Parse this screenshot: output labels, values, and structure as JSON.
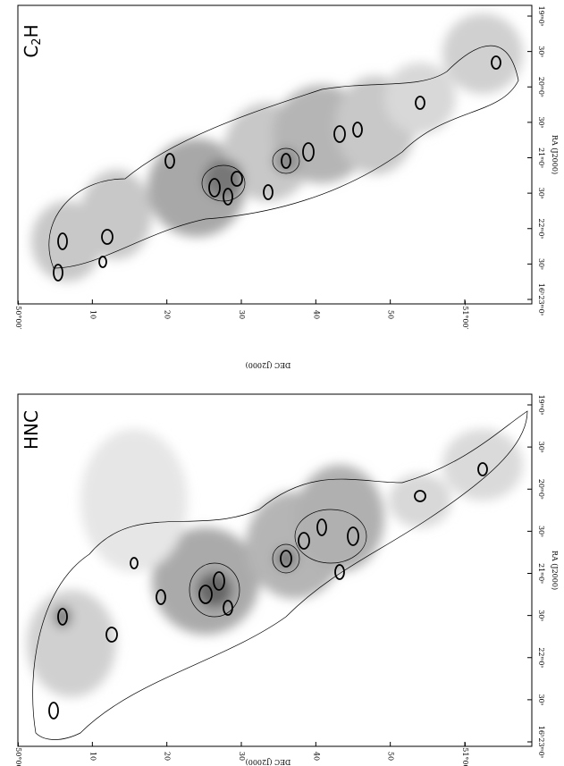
{
  "panels": [
    {
      "label": {
        "main": "C",
        "sub": "2",
        "end": "H"
      },
      "dec_ticks": [
        "−50°00′",
        "10",
        "20",
        "30",
        "40",
        "50",
        "−51°00′"
      ],
      "dec_axis": "DEC (J2000)",
      "ra_ticks": [
        "16ʰ23ᵐ0ˢ",
        "30ˢ",
        "22ᵐ0ˢ",
        "30ˢ",
        "21ᵐ0ˢ",
        "30ˢ",
        "20ᵐ0ˢ",
        "30ˢ",
        "19ᵐ0ˢ"
      ],
      "ra_axis": "RA (J2000)"
    },
    {
      "label": {
        "main": "HNC"
      },
      "dec_ticks": [
        "−50°00′",
        "10",
        "20",
        "30",
        "40",
        "50",
        "−51°00′"
      ],
      "dec_axis": "DEC (J2000)",
      "ra_ticks": [
        "16ʰ23ᵐ0ˢ",
        "30ˢ",
        "22ᵐ0ˢ",
        "30ˢ",
        "21ᵐ0ˢ",
        "30ˢ",
        "20ᵐ0ˢ",
        "30ˢ",
        "19ᵐ0ˢ"
      ],
      "ra_axis": "RA (J2000)"
    }
  ]
}
